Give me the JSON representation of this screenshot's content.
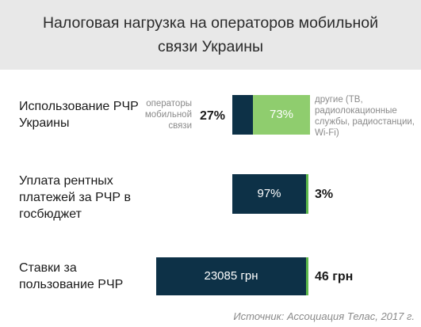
{
  "title": "Налоговая нагрузка на операторов мобильной связи Украины",
  "source": "Источник: Ассоциация Телас, 2017 г.",
  "colors": {
    "operators": "#0d3147",
    "others": "#8fcd6e",
    "accent": "#5cb84a",
    "header_bg": "#e8e8e8"
  },
  "chart_data": {
    "type": "bar",
    "rows": [
      {
        "label": "Использование РЧР Украины",
        "segments": [
          {
            "name": "операторы мобильной связи",
            "value": 27,
            "display": "27%"
          },
          {
            "name": "другие (ТВ, радиолокационные службы, радиостанции, Wi-Fi)",
            "value": 73,
            "display": "73%"
          }
        ]
      },
      {
        "label": "Уплата рентных платежей за РЧР в госбюджет",
        "segments": [
          {
            "value": 97,
            "display": "97%"
          },
          {
            "value": 3,
            "display": "3%"
          }
        ]
      },
      {
        "label": "Ставки за пользование РЧР",
        "segments": [
          {
            "value": 23085,
            "display": "23085 грн"
          },
          {
            "value": 46,
            "display": "46 грн"
          }
        ]
      }
    ]
  }
}
